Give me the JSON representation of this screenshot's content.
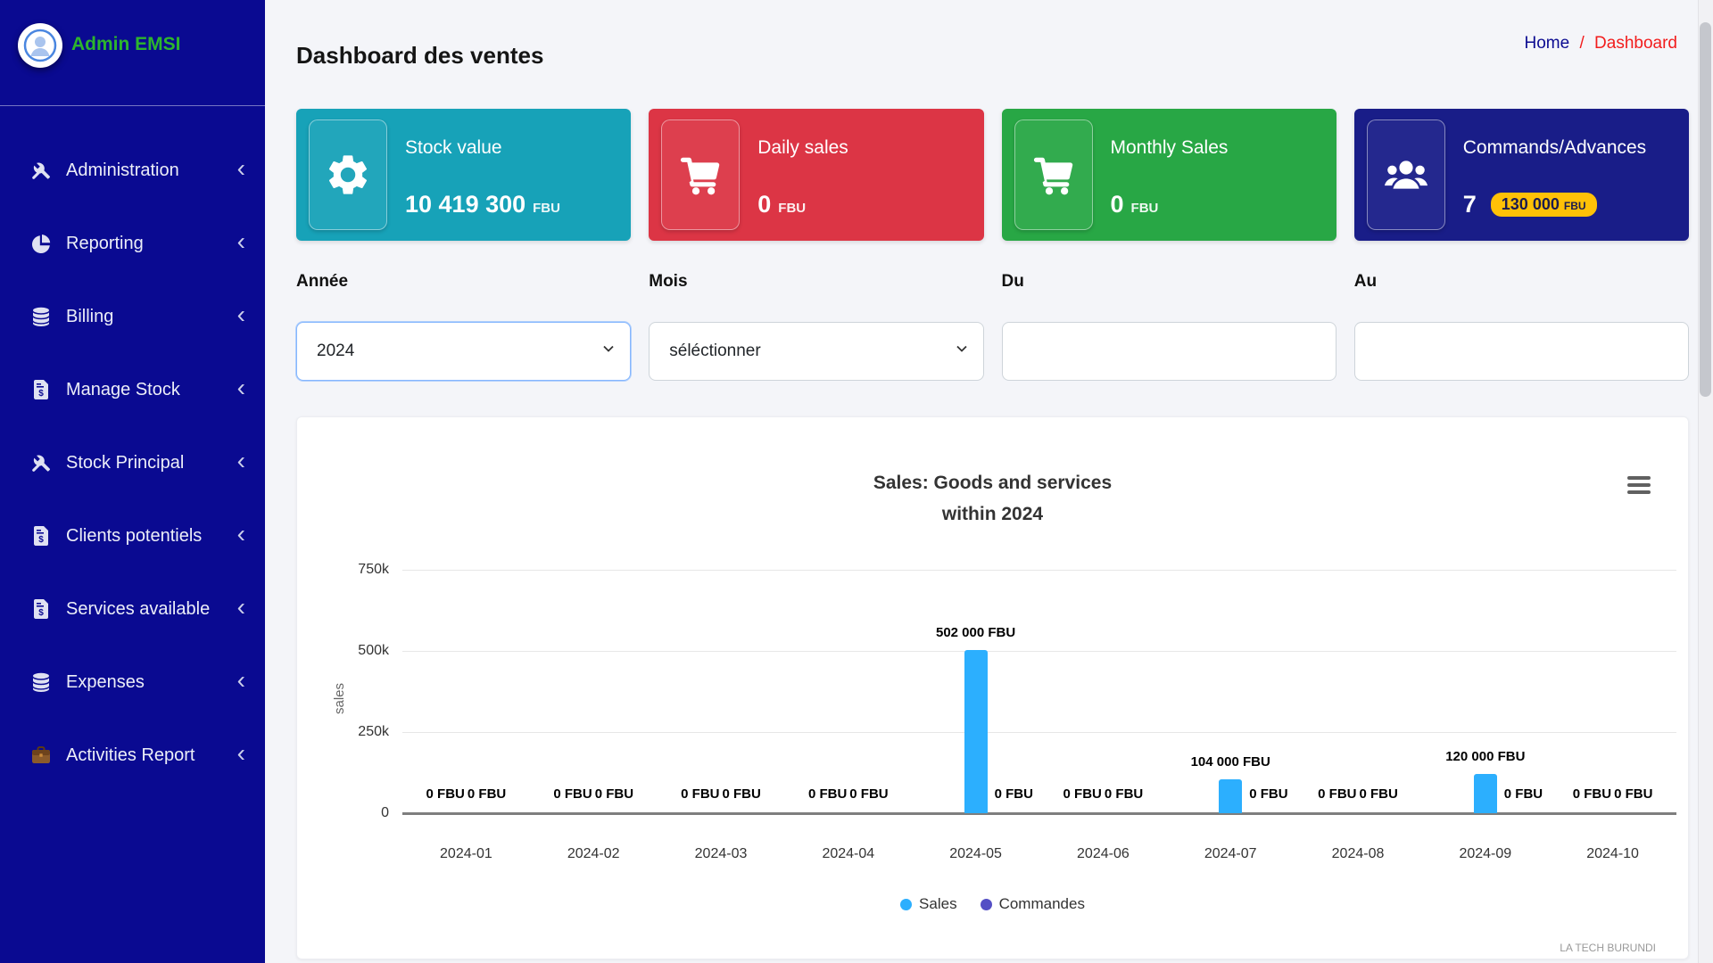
{
  "sidebar": {
    "user": "Admin EMSI",
    "items": [
      {
        "label": "Administration",
        "icon": "tools"
      },
      {
        "label": "Reporting",
        "icon": "pie"
      },
      {
        "label": "Billing",
        "icon": "database"
      },
      {
        "label": "Manage Stock",
        "icon": "invoice"
      },
      {
        "label": "Stock Principal",
        "icon": "tools"
      },
      {
        "label": "Clients potentiels",
        "icon": "invoice"
      },
      {
        "label": "Services available",
        "icon": "invoice"
      },
      {
        "label": "Expenses",
        "icon": "database"
      },
      {
        "label": "Activities Report",
        "icon": "briefcase"
      }
    ]
  },
  "header": {
    "title": "Dashboard des ventes",
    "breadcrumb": {
      "home": "Home",
      "sep": "/",
      "current": "Dashboard"
    }
  },
  "cards": [
    {
      "label": "Stock value",
      "value": "10 419 300",
      "unit": "FBU",
      "icon": "gear",
      "color": "#17a2b8"
    },
    {
      "label": "Daily sales",
      "value": "0",
      "unit": "FBU",
      "icon": "cart",
      "color": "#dc3545"
    },
    {
      "label": "Monthly Sales",
      "value": "0",
      "unit": "FBU",
      "icon": "cart",
      "color": "#28a745"
    },
    {
      "label": "Commands/Advances",
      "value": "7",
      "unit": "",
      "icon": "users",
      "color": "#191d88",
      "badge": {
        "value": "130 000",
        "unit": "FBU",
        "bg": "#ffc107"
      }
    }
  ],
  "filters": [
    {
      "label": "Année",
      "type": "select",
      "value": "2024",
      "focused": true
    },
    {
      "label": "Mois",
      "type": "select",
      "value": "séléctionner",
      "focused": false
    },
    {
      "label": "Du",
      "type": "input",
      "value": "",
      "focused": false
    },
    {
      "label": "Au",
      "type": "input",
      "value": "",
      "focused": false
    }
  ],
  "chart_data": {
    "type": "bar",
    "title": "Sales: Goods and services within 2024",
    "title_lines": [
      "Sales: Goods and services",
      "within 2024"
    ],
    "categories": [
      "2024-01",
      "2024-02",
      "2024-03",
      "2024-04",
      "2024-05",
      "2024-06",
      "2024-07",
      "2024-08",
      "2024-09",
      "2024-10"
    ],
    "series": [
      {
        "name": "Sales",
        "color": "#2caffe",
        "values": [
          0,
          0,
          0,
          0,
          502000,
          0,
          104000,
          0,
          120000,
          0
        ],
        "labels": [
          "0 FBU",
          "0 FBU",
          "0 FBU",
          "0 FBU",
          "502 000 FBU",
          "0 FBU",
          "104 000 FBU",
          "0 FBU",
          "120 000 FBU",
          "0 FBU"
        ]
      },
      {
        "name": "Commandes",
        "color": "#544fc5",
        "values": [
          0,
          0,
          0,
          0,
          0,
          0,
          0,
          0,
          0,
          0
        ],
        "labels": [
          "0 FBU",
          "0 FBU",
          "0 FBU",
          "0 FBU",
          "0 FBU",
          "0 FBU",
          "0 FBU",
          "0 FBU",
          "0 FBU",
          "0 FBU"
        ]
      }
    ],
    "xlabel": "",
    "ylabel": "sales",
    "ylim": [
      0,
      750000
    ],
    "yticks": [
      {
        "v": 0,
        "label": "0"
      },
      {
        "v": 250000,
        "label": "250k"
      },
      {
        "v": 500000,
        "label": "500k"
      },
      {
        "v": 750000,
        "label": "750k"
      }
    ],
    "grid": true,
    "legend_position": "bottom",
    "credits": "LA TECH BURUNDI"
  }
}
